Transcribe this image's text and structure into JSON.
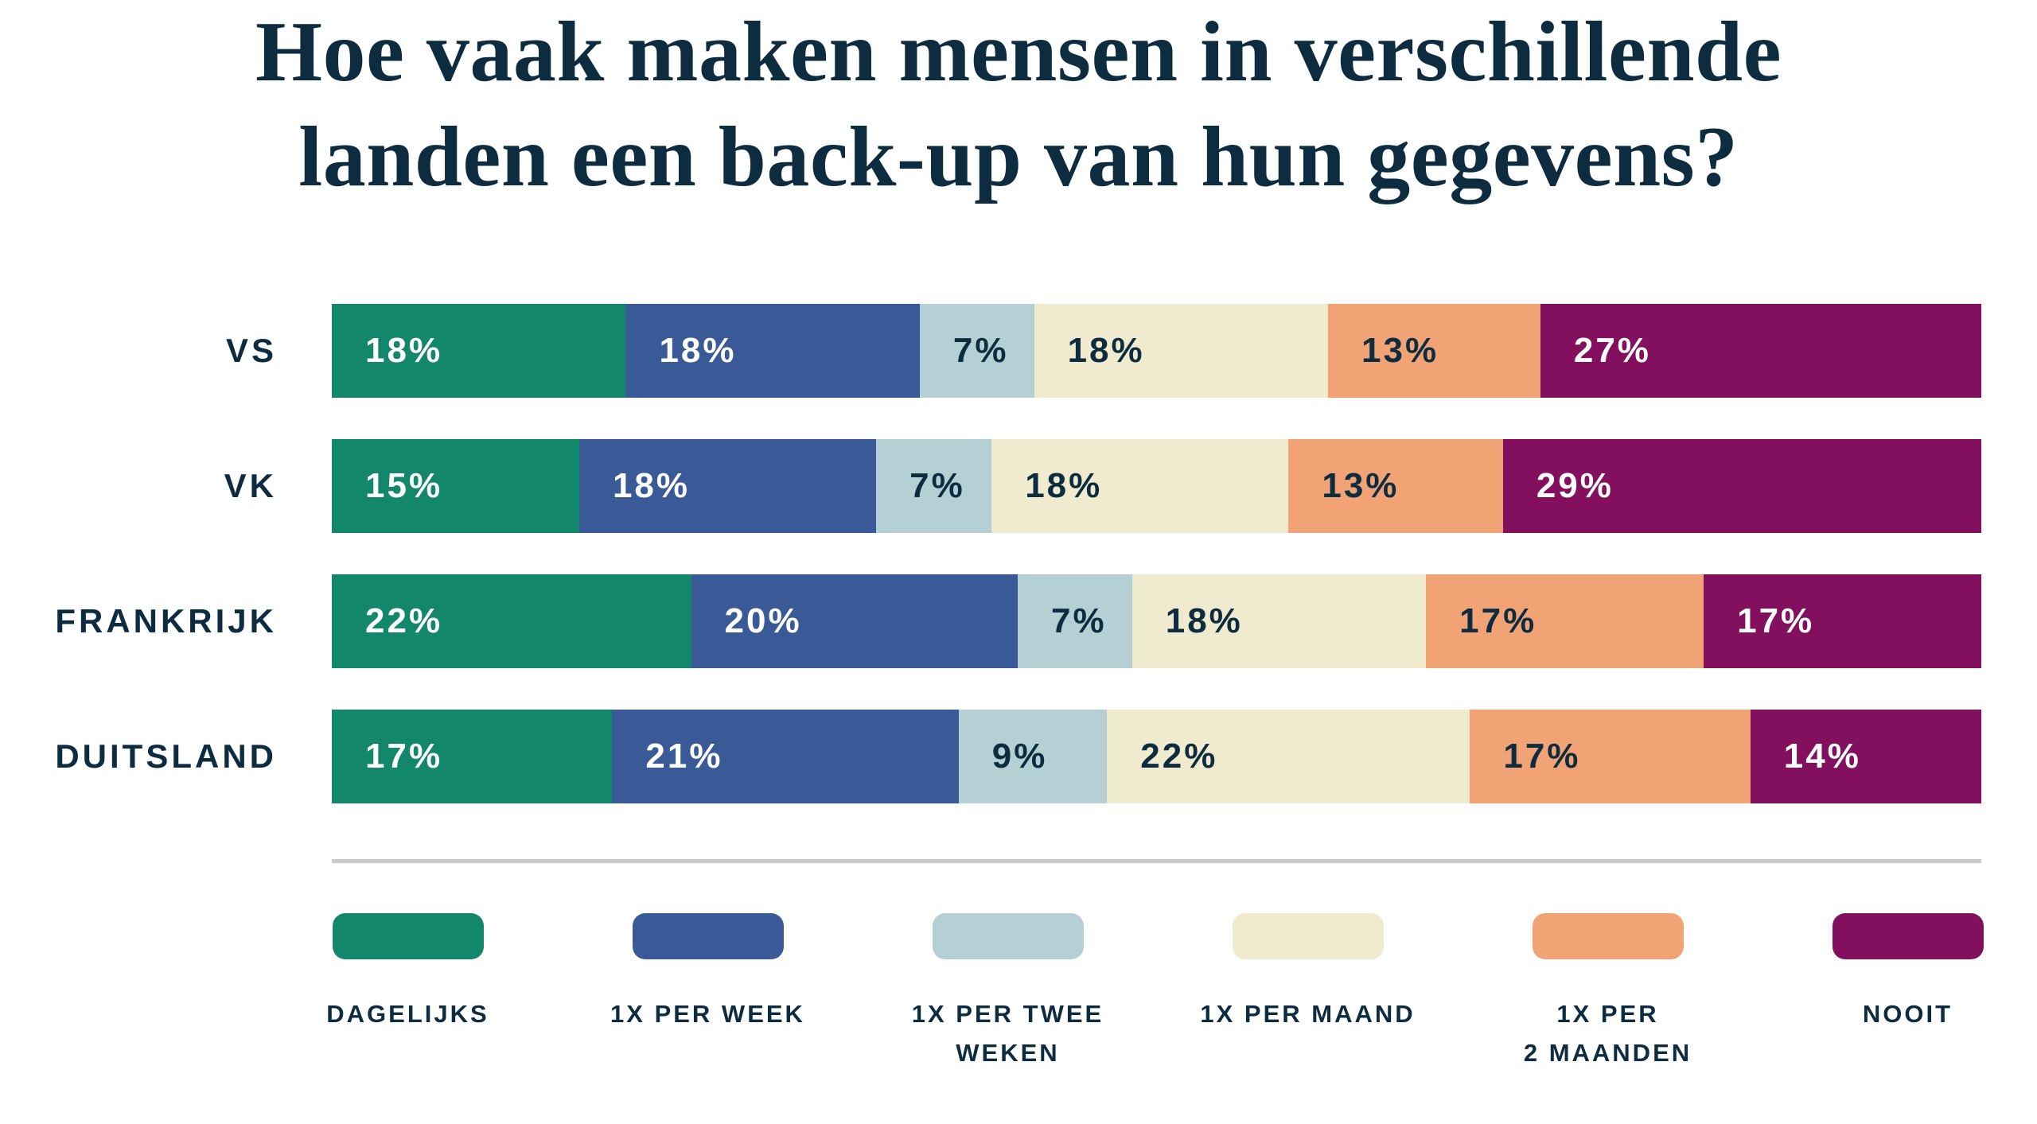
{
  "title": {
    "line1": "Hoe vaak maken mensen in verschillende",
    "line2": "landen een back-up van hun gegevens?"
  },
  "chart_data": {
    "type": "bar",
    "variant": "horizontal-stacked",
    "title": "Hoe vaak maken mensen in verschillende landen een back-up van hun gegevens?",
    "unit": "%",
    "value_labels": "inside-start",
    "legend_position": "bottom",
    "axis": "none",
    "grid": false,
    "categories": [
      "VS",
      "VK",
      "FRANKRIJK",
      "DUITSLAND"
    ],
    "series": [
      {
        "name": "DAGELIJKS",
        "legend_lines": [
          "DAGELIJKS"
        ],
        "color": "#12876C",
        "text_color": "#FFFFFF",
        "values": [
          18,
          15,
          22,
          17
        ]
      },
      {
        "name": "1X PER WEEK",
        "legend_lines": [
          "1X PER WEEK"
        ],
        "color": "#3A5A97",
        "text_color": "#FFFFFF",
        "values": [
          18,
          18,
          20,
          21
        ]
      },
      {
        "name": "1X PER TWEE WEKEN",
        "legend_lines": [
          "1X PER TWEE",
          "WEKEN"
        ],
        "color": "#B4D0D4",
        "text_color": "#0D2C3F",
        "values": [
          7,
          7,
          7,
          9
        ]
      },
      {
        "name": "1X PER MAAND",
        "legend_lines": [
          "1X PER MAAND"
        ],
        "color": "#F0EACE",
        "text_color": "#0D2C3F",
        "values": [
          18,
          18,
          18,
          22
        ]
      },
      {
        "name": "1X PER 2 MAANDEN",
        "legend_lines": [
          "1X PER",
          "2 MAANDEN"
        ],
        "color": "#F2A376",
        "text_color": "#0D2C3F",
        "values": [
          13,
          13,
          17,
          17
        ]
      },
      {
        "name": "NOOIT",
        "legend_lines": [
          "NOOIT"
        ],
        "color": "#82105E",
        "text_color": "#FFFFFF",
        "values": [
          27,
          29,
          17,
          14
        ]
      }
    ]
  },
  "colors": {
    "title_text": "#0D2C3F",
    "divider": "#C8CBCD",
    "background": "#FFFFFF"
  }
}
